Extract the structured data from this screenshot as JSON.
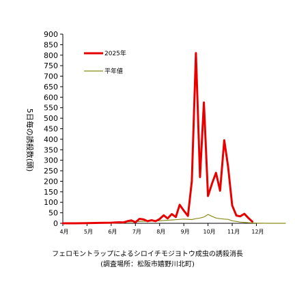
{
  "chart_data": {
    "type": "line",
    "ylabel": "5日毎の誘殺数(頭)",
    "ylim": [
      0,
      900
    ],
    "yticks": [
      0,
      50,
      100,
      150,
      200,
      250,
      300,
      350,
      400,
      450,
      500,
      550,
      600,
      650,
      700,
      750,
      800,
      850,
      900
    ],
    "xlim": [
      4,
      13.2
    ],
    "xticks": [
      {
        "label": "4月",
        "month": 4
      },
      {
        "label": "5月",
        "month": 5
      },
      {
        "label": "6月",
        "month": 6
      },
      {
        "label": "7月",
        "month": 7
      },
      {
        "label": "8月",
        "month": 8
      },
      {
        "label": "9月",
        "month": 9
      },
      {
        "label": "10月",
        "month": 10
      },
      {
        "label": "11月",
        "month": 11
      },
      {
        "label": "12月",
        "month": 12
      }
    ],
    "legend_position": "top-left",
    "grid": false,
    "series": [
      {
        "name": "2025年",
        "color": "#e60000",
        "points": [
          [
            4.0,
            0
          ],
          [
            4.5,
            0
          ],
          [
            5.0,
            1
          ],
          [
            5.5,
            2
          ],
          [
            6.0,
            3
          ],
          [
            6.17,
            4
          ],
          [
            6.33,
            5
          ],
          [
            6.5,
            4
          ],
          [
            6.67,
            10
          ],
          [
            6.83,
            14
          ],
          [
            7.0,
            5
          ],
          [
            7.17,
            21
          ],
          [
            7.33,
            19
          ],
          [
            7.5,
            10
          ],
          [
            7.67,
            15
          ],
          [
            7.83,
            10
          ],
          [
            8.0,
            20
          ],
          [
            8.17,
            38
          ],
          [
            8.33,
            23
          ],
          [
            8.5,
            44
          ],
          [
            8.67,
            30
          ],
          [
            8.83,
            88
          ],
          [
            9.0,
            60
          ],
          [
            9.17,
            35
          ],
          [
            9.33,
            200
          ],
          [
            9.5,
            810
          ],
          [
            9.67,
            220
          ],
          [
            9.83,
            575
          ],
          [
            10.0,
            130
          ],
          [
            10.17,
            190
          ],
          [
            10.33,
            240
          ],
          [
            10.5,
            155
          ],
          [
            10.67,
            395
          ],
          [
            10.83,
            270
          ],
          [
            11.0,
            85
          ],
          [
            11.17,
            37
          ],
          [
            11.33,
            33
          ],
          [
            11.5,
            45
          ],
          [
            11.67,
            25
          ],
          [
            11.83,
            8
          ]
        ]
      },
      {
        "name": "平年値",
        "color": "#8b8b1a",
        "points": [
          [
            4.0,
            0
          ],
          [
            4.5,
            1
          ],
          [
            5.0,
            2
          ],
          [
            5.5,
            3
          ],
          [
            6.0,
            4
          ],
          [
            6.5,
            6
          ],
          [
            7.0,
            8
          ],
          [
            7.5,
            10
          ],
          [
            8.0,
            12
          ],
          [
            8.5,
            16
          ],
          [
            9.0,
            20
          ],
          [
            9.33,
            18
          ],
          [
            9.5,
            22
          ],
          [
            9.67,
            25
          ],
          [
            9.83,
            30
          ],
          [
            10.0,
            42
          ],
          [
            10.17,
            33
          ],
          [
            10.33,
            25
          ],
          [
            10.5,
            22
          ],
          [
            10.67,
            20
          ],
          [
            10.83,
            19
          ],
          [
            11.0,
            12
          ],
          [
            11.33,
            6
          ],
          [
            11.67,
            3
          ],
          [
            12.0,
            1
          ],
          [
            12.5,
            0
          ],
          [
            13.2,
            0
          ]
        ]
      }
    ],
    "caption": [
      "フェロモントラップによるシロイチモジヨトウ成虫の誘殺消長",
      "(調査場所：松阪市嬉野川北町)"
    ]
  }
}
